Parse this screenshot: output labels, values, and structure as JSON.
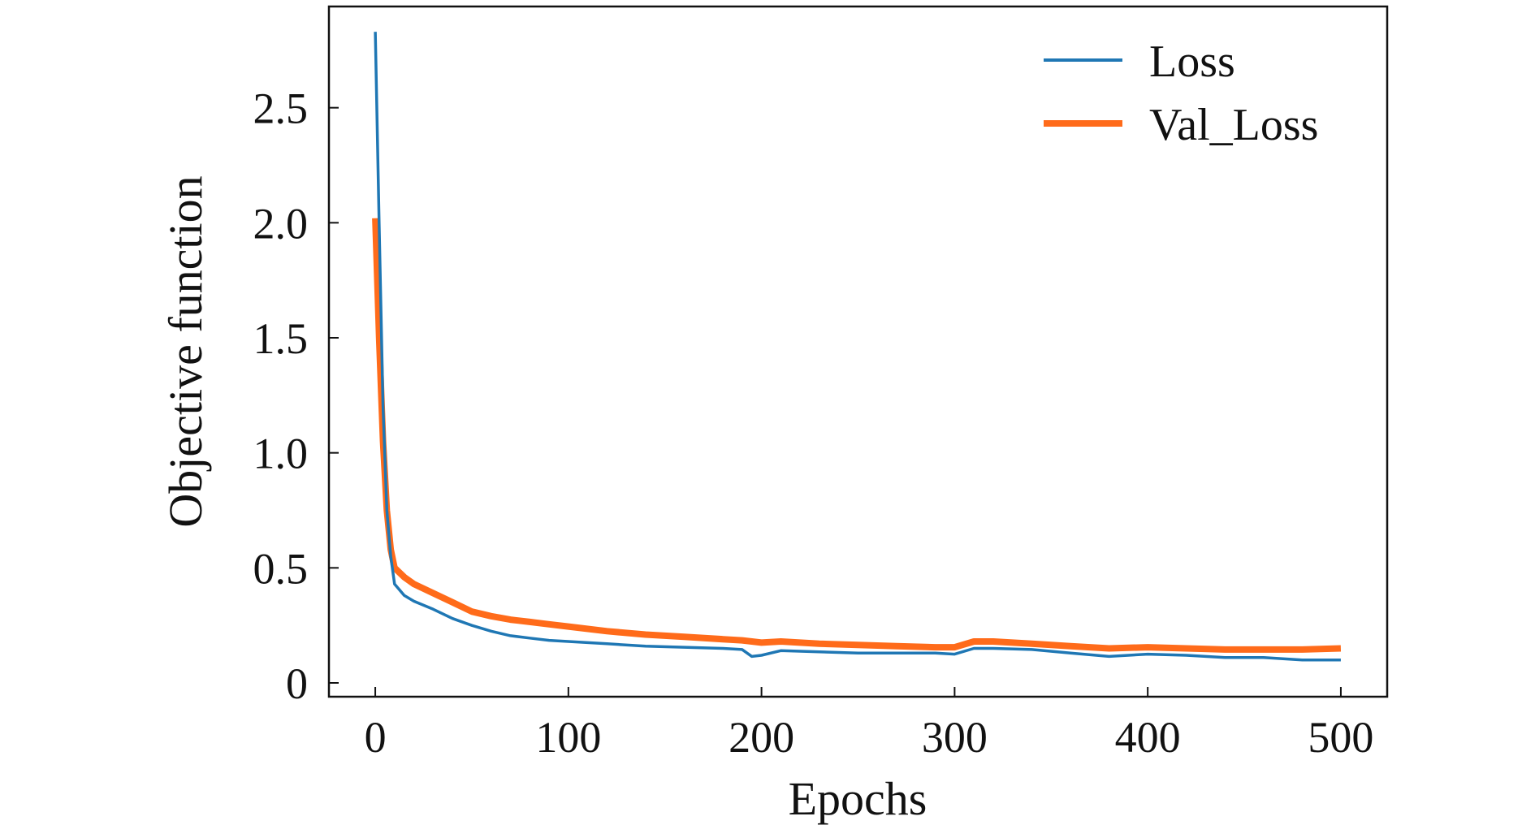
{
  "chart_data": {
    "type": "line",
    "xlabel": "Epochs",
    "ylabel": "Objective function",
    "xlim": [
      -24,
      524
    ],
    "ylim": [
      -0.06,
      2.94
    ],
    "x_ticks": [
      0,
      100,
      200,
      300,
      400,
      500
    ],
    "x_tick_labels": [
      "0",
      "100",
      "200",
      "300",
      "400",
      "500"
    ],
    "y_ticks": [
      0,
      0.5,
      1.0,
      1.5,
      2.0,
      2.5
    ],
    "y_tick_labels": [
      "0",
      "0.5",
      "1.0",
      "1.5",
      "2.0",
      "2.5"
    ],
    "grid": false,
    "legend_position": "top-right",
    "series": [
      {
        "name": "Loss",
        "color": "#1f77b4",
        "x": [
          0,
          2,
          4,
          6,
          8,
          10,
          15,
          20,
          30,
          40,
          50,
          60,
          70,
          80,
          90,
          100,
          120,
          140,
          160,
          180,
          190,
          195,
          200,
          210,
          230,
          250,
          270,
          290,
          300,
          310,
          320,
          340,
          360,
          380,
          400,
          420,
          440,
          460,
          480,
          500
        ],
        "y": [
          2.83,
          2.0,
          1.2,
          0.75,
          0.55,
          0.43,
          0.38,
          0.355,
          0.32,
          0.28,
          0.25,
          0.225,
          0.205,
          0.195,
          0.185,
          0.18,
          0.17,
          0.16,
          0.155,
          0.15,
          0.145,
          0.115,
          0.12,
          0.14,
          0.135,
          0.13,
          0.13,
          0.13,
          0.125,
          0.15,
          0.15,
          0.145,
          0.13,
          0.115,
          0.125,
          0.12,
          0.11,
          0.11,
          0.1,
          0.1
        ]
      },
      {
        "name": "Val_Loss",
        "color": "#ff6b1a",
        "x": [
          0,
          2,
          4,
          6,
          8,
          10,
          15,
          20,
          30,
          40,
          50,
          60,
          70,
          80,
          90,
          100,
          120,
          140,
          160,
          180,
          190,
          200,
          210,
          230,
          250,
          270,
          290,
          300,
          310,
          320,
          340,
          360,
          380,
          400,
          420,
          440,
          460,
          480,
          500
        ],
        "y": [
          2.02,
          1.5,
          1.05,
          0.75,
          0.58,
          0.5,
          0.46,
          0.43,
          0.39,
          0.35,
          0.31,
          0.29,
          0.275,
          0.265,
          0.255,
          0.245,
          0.225,
          0.21,
          0.2,
          0.19,
          0.185,
          0.175,
          0.18,
          0.17,
          0.165,
          0.16,
          0.155,
          0.155,
          0.18,
          0.18,
          0.17,
          0.16,
          0.15,
          0.155,
          0.15,
          0.145,
          0.145,
          0.145,
          0.15
        ]
      }
    ]
  }
}
